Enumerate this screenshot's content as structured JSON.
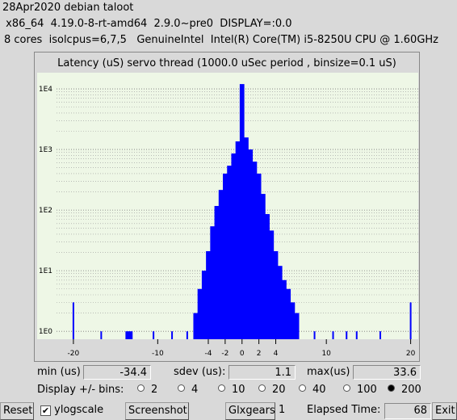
{
  "header": {
    "lines": [
      "28Apr2020 debian taloot",
      " x86_64  4.19.0-8-rt-amd64  2.9.0~pre0  DISPLAY=:0.0",
      "8 cores  isolcpus=6,7,5   GenuineIntel  Intel(R) Core(TM) i5-8250U CPU @ 1.60GHz"
    ]
  },
  "chart_data": {
    "type": "bar",
    "title": "Latency (uS) servo thread (1000.0 uSec period , binsize=0.1 uS)",
    "x": [
      -20,
      -16.7,
      -13.6,
      -13.2,
      -10.5,
      -8.3,
      -6.5,
      -5.5,
      -5,
      -4.5,
      -4,
      -3.5,
      -3,
      -2.5,
      -2,
      -1.5,
      -1,
      -0.5,
      0,
      0.5,
      1,
      1.5,
      2,
      2.5,
      3,
      3.5,
      4,
      4.5,
      5,
      5.5,
      6,
      6.5,
      8.6,
      10.8,
      12.4,
      13.6,
      16.4,
      20
    ],
    "values": [
      3,
      1,
      1,
      1,
      1,
      1,
      1,
      2,
      5,
      10,
      21,
      54,
      117,
      215,
      400,
      540,
      860,
      1360,
      12000,
      1580,
      1000,
      630,
      400,
      185,
      86,
      46,
      21,
      12,
      7,
      5,
      3,
      2,
      1,
      1,
      1,
      1,
      1,
      3
    ],
    "color": "#0000ff",
    "log_y": true,
    "xlim": [
      -24.3,
      20.9
    ],
    "xticks": [
      -20,
      -10,
      -4,
      -2,
      0,
      2,
      4,
      10,
      20
    ],
    "ylim": [
      0.74,
      18500
    ],
    "yticks": [
      {
        "value": 1,
        "label": "1E0"
      },
      {
        "value": 10,
        "label": "1E1"
      },
      {
        "value": 100,
        "label": "1E2"
      },
      {
        "value": 1000,
        "label": "1E3"
      },
      {
        "value": 10000,
        "label": "1E4"
      }
    ],
    "minor_yticks": [
      2,
      3,
      4,
      5,
      6,
      7,
      8,
      9,
      20,
      30,
      40,
      50,
      60,
      70,
      80,
      90,
      200,
      300,
      400,
      500,
      600,
      700,
      800,
      900,
      2000,
      3000,
      4000,
      5000,
      6000,
      7000,
      8000,
      9000
    ],
    "grid": true
  },
  "stats": {
    "min_label": "min (us)",
    "min": -34.4,
    "sdev_label": "sdev (us):",
    "sdev": 1.1,
    "max_label": "max(us)",
    "max": 33.6
  },
  "bins": {
    "label": "Display +/- bins:",
    "options": [
      2,
      4,
      10,
      20,
      40,
      100,
      200
    ],
    "selected": 200
  },
  "controls": {
    "reset": "Reset",
    "ylogscale": "ylogscale",
    "ylogscale_checked": true,
    "screenshot": "Screenshot",
    "glxgears": "Glxgears",
    "glxgears_count": 1,
    "elapsed_label": "Elapsed Time:",
    "elapsed": 68,
    "exit": "Exit"
  }
}
